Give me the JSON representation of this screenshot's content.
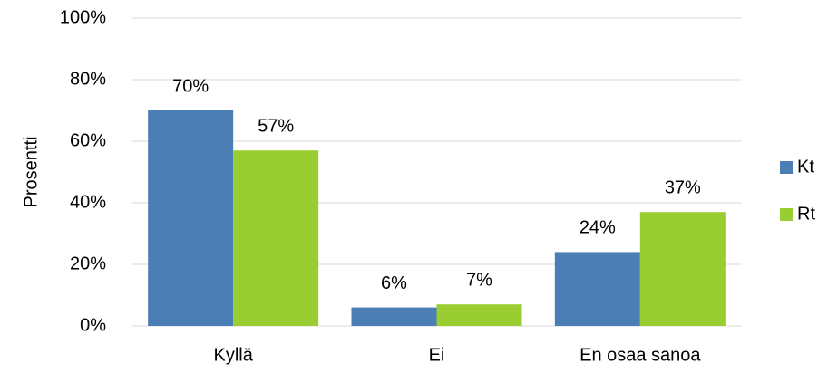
{
  "chart_data": {
    "type": "bar",
    "ylabel": "Prosentti",
    "categories": [
      "Kyllä",
      "Ei",
      "En osaa sanoa"
    ],
    "series": [
      {
        "name": "Kt",
        "color": "#4a7eb4",
        "values": [
          70,
          6,
          24
        ],
        "value_labels": [
          "70%",
          "6%",
          "24%"
        ]
      },
      {
        "name": "Rt",
        "color": "#9acd32",
        "values": [
          57,
          7,
          37
        ],
        "value_labels": [
          "57%",
          "7%",
          "37%"
        ]
      }
    ],
    "ylim": [
      0,
      100
    ],
    "yticks": [
      {
        "value": 0,
        "label": "0%"
      },
      {
        "value": 20,
        "label": "20%"
      },
      {
        "value": 40,
        "label": "40%"
      },
      {
        "value": 60,
        "label": "60%"
      },
      {
        "value": 80,
        "label": "80%"
      },
      {
        "value": 100,
        "label": "100%"
      }
    ],
    "grid": true,
    "legend": "right"
  }
}
